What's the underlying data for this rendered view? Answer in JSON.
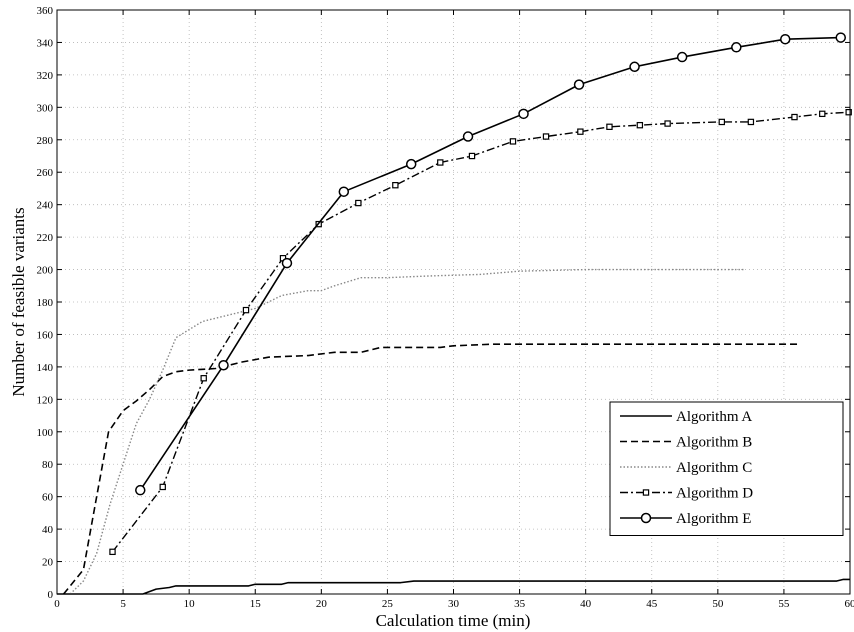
{
  "chart_data": {
    "type": "line",
    "title": "",
    "xlabel": "Calculation time (min)",
    "ylabel": "Number of feasible variants",
    "xlim": [
      0,
      60
    ],
    "ylim": [
      0,
      360
    ],
    "xticks": [
      0,
      5,
      10,
      15,
      20,
      25,
      30,
      35,
      40,
      45,
      50,
      55,
      60
    ],
    "yticks": [
      0,
      20,
      40,
      60,
      80,
      100,
      120,
      140,
      160,
      180,
      200,
      220,
      240,
      260,
      280,
      300,
      320,
      340,
      360
    ],
    "grid": true,
    "legend_position": "bottom-right",
    "series": [
      {
        "name": "Algorithm A",
        "line_style": "solid",
        "marker": "none",
        "color": "#000000",
        "points": [
          [
            0,
            0
          ],
          [
            6.5,
            0
          ],
          [
            7.5,
            3
          ],
          [
            8.5,
            4
          ],
          [
            9,
            5
          ],
          [
            14.5,
            5
          ],
          [
            15,
            6
          ],
          [
            17,
            6
          ],
          [
            17.5,
            7
          ],
          [
            26,
            7
          ],
          [
            27,
            8
          ],
          [
            59,
            8
          ],
          [
            59.5,
            9
          ],
          [
            60,
            9
          ]
        ]
      },
      {
        "name": "Algorithm B",
        "line_style": "dashed",
        "marker": "none",
        "color": "#000000",
        "points": [
          [
            0.5,
            0
          ],
          [
            2,
            15
          ],
          [
            3,
            60
          ],
          [
            3.9,
            100
          ],
          [
            5,
            113
          ],
          [
            6,
            119
          ],
          [
            7,
            126
          ],
          [
            8,
            134
          ],
          [
            9,
            137
          ],
          [
            10,
            138
          ],
          [
            12,
            139
          ],
          [
            13,
            141
          ],
          [
            14,
            143
          ],
          [
            16,
            146
          ],
          [
            19,
            147
          ],
          [
            21,
            149
          ],
          [
            23,
            149
          ],
          [
            24.5,
            152
          ],
          [
            29,
            152
          ],
          [
            30,
            153
          ],
          [
            33,
            154
          ],
          [
            45,
            154
          ],
          [
            56,
            154
          ]
        ]
      },
      {
        "name": "Algorithm C",
        "line_style": "dotted",
        "marker": "none",
        "color": "#888888",
        "points": [
          [
            1,
            0
          ],
          [
            2,
            8
          ],
          [
            3,
            25
          ],
          [
            4,
            55
          ],
          [
            5,
            80
          ],
          [
            6,
            105
          ],
          [
            7,
            120
          ],
          [
            8,
            138
          ],
          [
            9,
            158
          ],
          [
            10,
            163
          ],
          [
            11,
            168
          ],
          [
            13,
            172
          ],
          [
            15,
            176
          ],
          [
            17,
            184
          ],
          [
            19,
            187
          ],
          [
            20,
            187
          ],
          [
            21,
            190
          ],
          [
            23,
            195
          ],
          [
            25,
            195
          ],
          [
            28,
            196
          ],
          [
            32,
            197
          ],
          [
            35,
            199
          ],
          [
            40,
            200
          ],
          [
            52,
            200
          ]
        ]
      },
      {
        "name": "Algorithm D",
        "line_style": "dashdot",
        "marker": "square",
        "color": "#000000",
        "points": [
          [
            4.2,
            26
          ],
          [
            8,
            66
          ],
          [
            11.1,
            133
          ],
          [
            14.3,
            175
          ],
          [
            17.1,
            207
          ],
          [
            19.8,
            228
          ],
          [
            22.8,
            241
          ],
          [
            25.6,
            252
          ],
          [
            29,
            266
          ],
          [
            31.4,
            270
          ],
          [
            34.5,
            279
          ],
          [
            37,
            282
          ],
          [
            39.6,
            285
          ],
          [
            41.8,
            288
          ],
          [
            44.1,
            289
          ],
          [
            46.2,
            290
          ],
          [
            50.3,
            291
          ],
          [
            52.5,
            291
          ],
          [
            55.8,
            294
          ],
          [
            57.9,
            296
          ],
          [
            59.9,
            297
          ]
        ]
      },
      {
        "name": "Algorithm E",
        "line_style": "solid",
        "marker": "circle",
        "color": "#000000",
        "points": [
          [
            6.3,
            64
          ],
          [
            12.6,
            141
          ],
          [
            17.4,
            204
          ],
          [
            21.7,
            248
          ],
          [
            26.8,
            265
          ],
          [
            31.1,
            282
          ],
          [
            35.3,
            296
          ],
          [
            39.5,
            314
          ],
          [
            43.7,
            325
          ],
          [
            47.3,
            331
          ],
          [
            51.4,
            337
          ],
          [
            55.1,
            342
          ],
          [
            59.3,
            343
          ]
        ]
      }
    ]
  }
}
